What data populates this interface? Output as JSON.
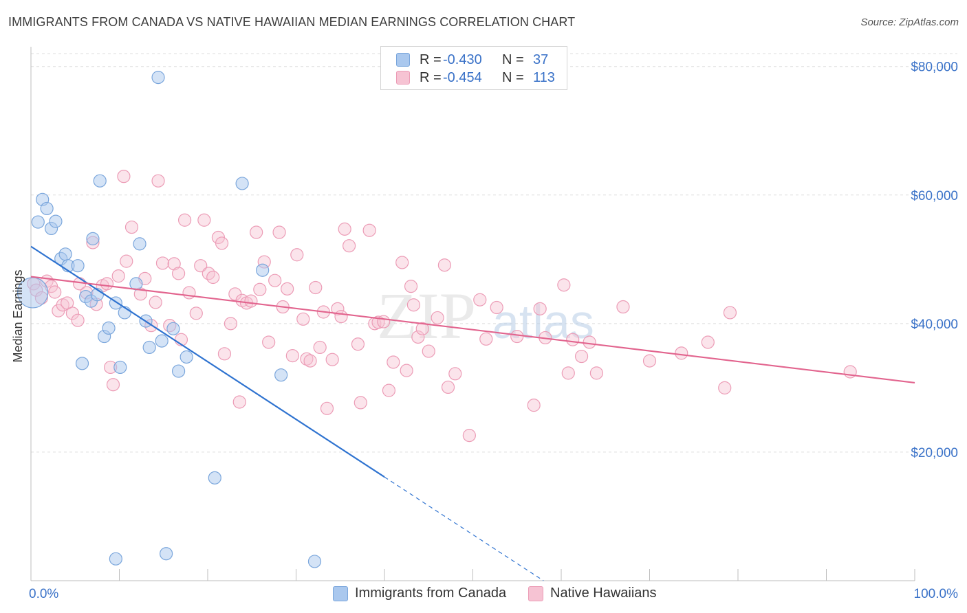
{
  "header": {
    "title": "IMMIGRANTS FROM CANADA VS NATIVE HAWAIIAN MEDIAN EARNINGS CORRELATION CHART",
    "source": "Source: ZipAtlas.com"
  },
  "legend": {
    "rows": [
      {
        "r_label": "R =",
        "r_value": "-0.430",
        "n_label": "N =",
        "n_value": "37"
      },
      {
        "r_label": "R =",
        "r_value": "-0.454",
        "n_label": "N =",
        "n_value": "113"
      }
    ]
  },
  "bottom_legend": {
    "series1": "Immigrants from Canada",
    "series2": "Native Hawaiians"
  },
  "watermark": {
    "zip": "ZIP",
    "atlas": "atlas"
  },
  "colors": {
    "blue_fill": "#aac8ee",
    "blue_stroke": "#7aa6dc",
    "blue_line": "#2f73d0",
    "pink_fill": "#f6c3d3",
    "pink_stroke": "#ec9cb6",
    "pink_line": "#e2648e",
    "axis_text": "#3a72c8"
  },
  "chart_data": {
    "type": "scatter",
    "title": "IMMIGRANTS FROM CANADA VS NATIVE HAWAIIAN MEDIAN EARNINGS CORRELATION CHART",
    "xlabel": "",
    "ylabel": "Median Earnings",
    "xlim": [
      0,
      100
    ],
    "ylim": [
      0,
      82000
    ],
    "x_tick_labels": [
      "0.0%",
      "100.0%"
    ],
    "y_ticks": [
      {
        "value": 20000,
        "label": "$20,000"
      },
      {
        "value": 40000,
        "label": "$40,000"
      },
      {
        "value": 60000,
        "label": "$60,000"
      },
      {
        "value": 80000,
        "label": "$80,000"
      }
    ],
    "series": [
      {
        "name": "Immigrants from Canada",
        "R": -0.43,
        "N": 37,
        "trend": {
          "x0": 0,
          "y0": 52000,
          "x_solid_end": 40,
          "x1": 60,
          "y1": -1800
        },
        "points": [
          {
            "x": 0.2,
            "y": 44800,
            "big": true
          },
          {
            "x": 0.8,
            "y": 55800
          },
          {
            "x": 1.3,
            "y": 59300
          },
          {
            "x": 1.8,
            "y": 57900
          },
          {
            "x": 2.3,
            "y": 54800
          },
          {
            "x": 2.8,
            "y": 55900
          },
          {
            "x": 3.4,
            "y": 50100
          },
          {
            "x": 3.9,
            "y": 50800
          },
          {
            "x": 4.2,
            "y": 49000
          },
          {
            "x": 5.3,
            "y": 49000
          },
          {
            "x": 5.8,
            "y": 33800
          },
          {
            "x": 6.2,
            "y": 44200
          },
          {
            "x": 6.8,
            "y": 43500
          },
          {
            "x": 7.0,
            "y": 53200
          },
          {
            "x": 7.5,
            "y": 44500
          },
          {
            "x": 7.8,
            "y": 62200
          },
          {
            "x": 8.3,
            "y": 38000
          },
          {
            "x": 8.8,
            "y": 39300
          },
          {
            "x": 9.6,
            "y": 43200
          },
          {
            "x": 10.1,
            "y": 33200
          },
          {
            "x": 10.6,
            "y": 41700
          },
          {
            "x": 11.9,
            "y": 46200
          },
          {
            "x": 12.3,
            "y": 52400
          },
          {
            "x": 13.0,
            "y": 40400
          },
          {
            "x": 13.4,
            "y": 36300
          },
          {
            "x": 14.4,
            "y": 78300
          },
          {
            "x": 14.8,
            "y": 37300
          },
          {
            "x": 16.1,
            "y": 39200
          },
          {
            "x": 16.7,
            "y": 32600
          },
          {
            "x": 17.6,
            "y": 34800
          },
          {
            "x": 20.8,
            "y": 16000
          },
          {
            "x": 23.9,
            "y": 61800
          },
          {
            "x": 26.2,
            "y": 48300
          },
          {
            "x": 28.3,
            "y": 32000
          },
          {
            "x": 9.6,
            "y": 3400
          },
          {
            "x": 15.3,
            "y": 4200
          },
          {
            "x": 32.1,
            "y": 3000
          }
        ]
      },
      {
        "name": "Native Hawaiians",
        "R": -0.454,
        "N": 113,
        "trend": {
          "x0": 0,
          "y0": 47300,
          "x1": 100,
          "y1": 30800
        },
        "points": [
          {
            "x": 0.3,
            "y": 46200
          },
          {
            "x": 0.6,
            "y": 45200
          },
          {
            "x": 1.2,
            "y": 44000
          },
          {
            "x": 1.8,
            "y": 46600
          },
          {
            "x": 2.3,
            "y": 45800
          },
          {
            "x": 2.7,
            "y": 44900
          },
          {
            "x": 3.1,
            "y": 42000
          },
          {
            "x": 3.6,
            "y": 42900
          },
          {
            "x": 4.1,
            "y": 43200
          },
          {
            "x": 4.7,
            "y": 41600
          },
          {
            "x": 5.3,
            "y": 40500
          },
          {
            "x": 5.5,
            "y": 46200
          },
          {
            "x": 6.3,
            "y": 44800
          },
          {
            "x": 7.0,
            "y": 52600
          },
          {
            "x": 7.4,
            "y": 43000
          },
          {
            "x": 8.1,
            "y": 45900
          },
          {
            "x": 8.6,
            "y": 46200
          },
          {
            "x": 9.0,
            "y": 33200
          },
          {
            "x": 9.3,
            "y": 30500
          },
          {
            "x": 9.9,
            "y": 47400
          },
          {
            "x": 10.5,
            "y": 62900
          },
          {
            "x": 10.8,
            "y": 49700
          },
          {
            "x": 11.4,
            "y": 55000
          },
          {
            "x": 12.4,
            "y": 44600
          },
          {
            "x": 12.9,
            "y": 47000
          },
          {
            "x": 13.6,
            "y": 39700
          },
          {
            "x": 14.1,
            "y": 43300
          },
          {
            "x": 14.4,
            "y": 62200
          },
          {
            "x": 14.9,
            "y": 49400
          },
          {
            "x": 15.7,
            "y": 39700
          },
          {
            "x": 16.2,
            "y": 49300
          },
          {
            "x": 16.7,
            "y": 47800
          },
          {
            "x": 17.0,
            "y": 37500
          },
          {
            "x": 17.4,
            "y": 56100
          },
          {
            "x": 17.9,
            "y": 44800
          },
          {
            "x": 18.7,
            "y": 41600
          },
          {
            "x": 19.2,
            "y": 49000
          },
          {
            "x": 19.6,
            "y": 56100
          },
          {
            "x": 20.1,
            "y": 47800
          },
          {
            "x": 20.6,
            "y": 47200
          },
          {
            "x": 21.2,
            "y": 53400
          },
          {
            "x": 21.6,
            "y": 52500
          },
          {
            "x": 21.9,
            "y": 35300
          },
          {
            "x": 22.6,
            "y": 40000
          },
          {
            "x": 23.1,
            "y": 44600
          },
          {
            "x": 23.6,
            "y": 27800
          },
          {
            "x": 23.9,
            "y": 43600
          },
          {
            "x": 24.4,
            "y": 43200
          },
          {
            "x": 24.9,
            "y": 43500
          },
          {
            "x": 25.5,
            "y": 54200
          },
          {
            "x": 25.9,
            "y": 45300
          },
          {
            "x": 26.4,
            "y": 49600
          },
          {
            "x": 26.9,
            "y": 37100
          },
          {
            "x": 27.6,
            "y": 46700
          },
          {
            "x": 28.1,
            "y": 54200
          },
          {
            "x": 28.5,
            "y": 42600
          },
          {
            "x": 29.0,
            "y": 45400
          },
          {
            "x": 29.6,
            "y": 35000
          },
          {
            "x": 30.1,
            "y": 50700
          },
          {
            "x": 30.8,
            "y": 40700
          },
          {
            "x": 31.2,
            "y": 34500
          },
          {
            "x": 31.6,
            "y": 34200
          },
          {
            "x": 32.2,
            "y": 45600
          },
          {
            "x": 32.7,
            "y": 36300
          },
          {
            "x": 33.1,
            "y": 41800
          },
          {
            "x": 33.5,
            "y": 26800
          },
          {
            "x": 34.1,
            "y": 34400
          },
          {
            "x": 34.7,
            "y": 42300
          },
          {
            "x": 35.1,
            "y": 41100
          },
          {
            "x": 35.5,
            "y": 54700
          },
          {
            "x": 36.0,
            "y": 52100
          },
          {
            "x": 37.0,
            "y": 36800
          },
          {
            "x": 37.3,
            "y": 27700
          },
          {
            "x": 38.3,
            "y": 54500
          },
          {
            "x": 38.9,
            "y": 40000
          },
          {
            "x": 39.3,
            "y": 40200
          },
          {
            "x": 39.9,
            "y": 40300
          },
          {
            "x": 40.5,
            "y": 29600
          },
          {
            "x": 41.0,
            "y": 34000
          },
          {
            "x": 42.0,
            "y": 49500
          },
          {
            "x": 42.5,
            "y": 32700
          },
          {
            "x": 43.0,
            "y": 45800
          },
          {
            "x": 43.3,
            "y": 42900
          },
          {
            "x": 43.8,
            "y": 37900
          },
          {
            "x": 44.3,
            "y": 39200
          },
          {
            "x": 45.0,
            "y": 35700
          },
          {
            "x": 46.0,
            "y": 40900
          },
          {
            "x": 46.8,
            "y": 49100
          },
          {
            "x": 47.2,
            "y": 30100
          },
          {
            "x": 48.0,
            "y": 32200
          },
          {
            "x": 49.6,
            "y": 22600
          },
          {
            "x": 50.8,
            "y": 43700
          },
          {
            "x": 51.5,
            "y": 37600
          },
          {
            "x": 52.7,
            "y": 42500
          },
          {
            "x": 55.0,
            "y": 38000
          },
          {
            "x": 56.9,
            "y": 27300
          },
          {
            "x": 57.6,
            "y": 42300
          },
          {
            "x": 58.2,
            "y": 37800
          },
          {
            "x": 60.3,
            "y": 46000
          },
          {
            "x": 60.8,
            "y": 32300
          },
          {
            "x": 61.3,
            "y": 37500
          },
          {
            "x": 62.3,
            "y": 34900
          },
          {
            "x": 63.2,
            "y": 37100
          },
          {
            "x": 64.0,
            "y": 32300
          },
          {
            "x": 67.0,
            "y": 42600
          },
          {
            "x": 70.0,
            "y": 34200
          },
          {
            "x": 73.6,
            "y": 35400
          },
          {
            "x": 76.6,
            "y": 37100
          },
          {
            "x": 78.5,
            "y": 30000
          },
          {
            "x": 79.1,
            "y": 41700
          },
          {
            "x": 92.7,
            "y": 32500
          }
        ]
      }
    ]
  }
}
